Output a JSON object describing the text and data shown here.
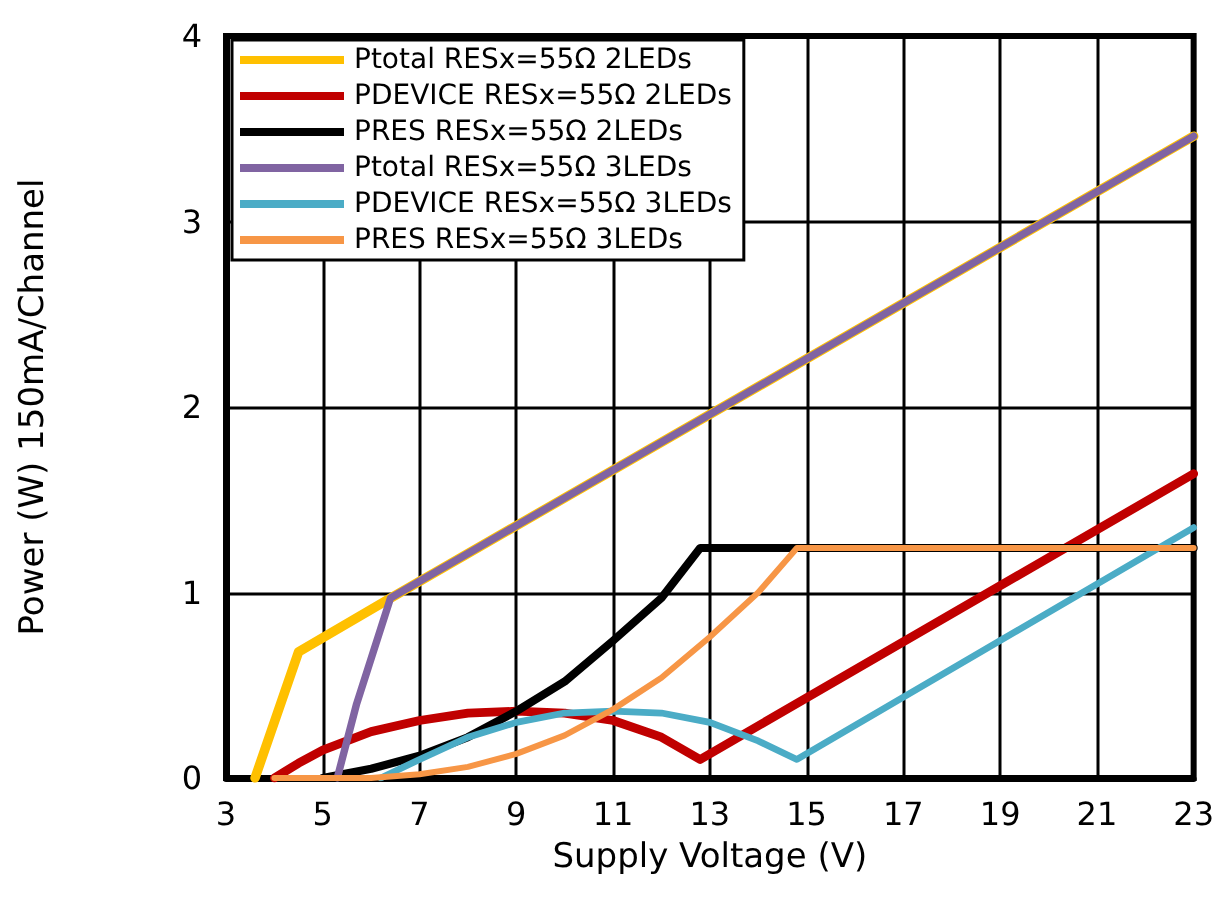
{
  "chart_data": {
    "type": "line",
    "xlabel": "Supply Voltage (V)",
    "ylabel": "Power (W) 150mA/Channel",
    "xlim": [
      3,
      23
    ],
    "xticks": [
      3,
      5,
      7,
      9,
      11,
      13,
      15,
      17,
      19,
      21,
      23
    ],
    "ylim": [
      0,
      4
    ],
    "yticks": [
      0,
      1,
      2,
      3,
      4
    ],
    "grid": true,
    "legend": "top left",
    "marker": "none",
    "line_style": "solid",
    "series": [
      {
        "name": "Ptotal RESx=55Ω 2LEDs",
        "color": "#ffc000",
        "x": [
          3.6,
          4.5,
          6.4,
          23
        ],
        "values": [
          0,
          0.68,
          0.97,
          3.46
        ]
      },
      {
        "name": "PDEVICE RESx=55Ω 2LEDs",
        "color": "#c00000",
        "x": [
          4,
          4.5,
          5,
          6,
          7,
          8,
          9,
          10,
          11,
          12,
          12.8,
          23
        ],
        "values": [
          0,
          0.08,
          0.15,
          0.25,
          0.31,
          0.35,
          0.36,
          0.35,
          0.31,
          0.22,
          0.1,
          1.64
        ]
      },
      {
        "name": "PRES RESx=55Ω 2LEDs",
        "color": "#000000",
        "x": [
          5,
          6,
          7,
          8,
          9,
          10,
          11,
          12,
          12.8,
          23
        ],
        "values": [
          0,
          0.05,
          0.12,
          0.22,
          0.36,
          0.52,
          0.74,
          0.97,
          1.24,
          1.24
        ]
      },
      {
        "name": "Ptotal RESx=55Ω 3LEDs",
        "color": "#8064a2",
        "x": [
          5.3,
          5.7,
          6.4,
          23
        ],
        "values": [
          0,
          0.4,
          0.97,
          3.46
        ]
      },
      {
        "name": "PDEVICE RESx=55Ω 3LEDs",
        "color": "#4bacc6",
        "x": [
          6.2,
          7,
          8,
          9,
          10,
          11,
          12,
          13,
          14,
          14.8,
          23
        ],
        "values": [
          0,
          0.1,
          0.22,
          0.3,
          0.35,
          0.36,
          0.35,
          0.3,
          0.2,
          0.1,
          1.35
        ]
      },
      {
        "name": "PRES RESx=55Ω 3LEDs",
        "color": "#f79646",
        "x": [
          4,
          6,
          7,
          8,
          9,
          10,
          11,
          12,
          13,
          14,
          14.8,
          23
        ],
        "values": [
          0,
          0,
          0.02,
          0.06,
          0.13,
          0.23,
          0.37,
          0.54,
          0.76,
          1.0,
          1.24,
          1.24
        ]
      }
    ]
  }
}
